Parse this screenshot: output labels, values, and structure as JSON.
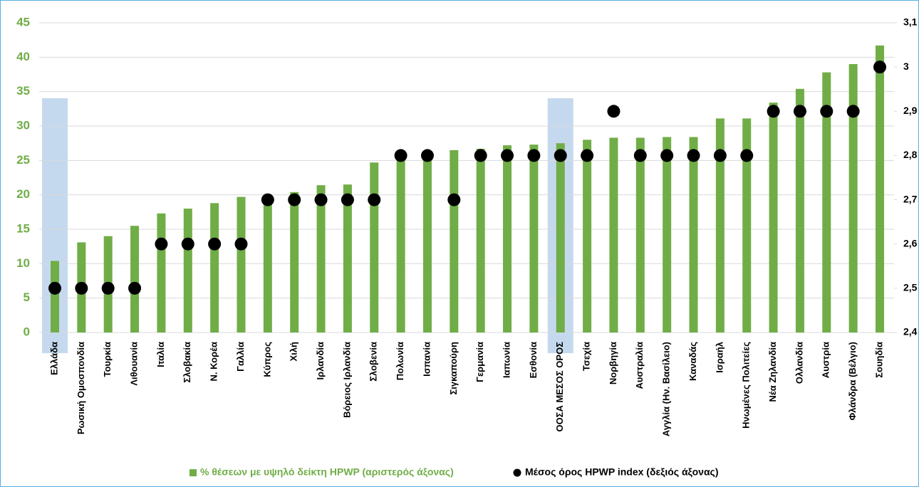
{
  "chart_data": {
    "type": "bar",
    "categories": [
      "Ελλάδα",
      "Ρωσική Ομοσπονδία",
      "Τουρκία",
      "Λιθουανία",
      "Ιταλία",
      "Σλοβακία",
      "Ν. Κορέα",
      "Γαλλία",
      "Κύπρος",
      "Χιλή",
      "Ιρλανδία",
      "Βόρειος Ιρλανδία",
      "Σλοβενία",
      "Πολωνία",
      "Ισπανία",
      "Σιγκαπούρη",
      "Γερμανία",
      "Ιαπωνία",
      "Εσθονία",
      "ΟΟΣΑ ΜΕΣΟΣ ΟΡΟΣ",
      "Τσεχία",
      "Νορβηγία",
      "Αυστραλία",
      "Αγγλία (Ην. Βασίλειο)",
      "Καναδάς",
      "Ισραήλ",
      "Ηνωμένες Πολιτείες",
      "Νέα Ζηλανδία",
      "Ολλανδία",
      "Αυστρία",
      "Φλάνδρα (Βέλγιο)",
      "Σουηδία"
    ],
    "series": [
      {
        "name": "% θέσεων με υψηλό δείκτη HPWP (αριστερός άξονας)",
        "type": "bar",
        "color": "#70ad47",
        "values": [
          10.4,
          13.1,
          14.0,
          15.5,
          17.3,
          18.0,
          18.8,
          19.7,
          19.6,
          20.4,
          21.4,
          21.5,
          24.7,
          25.9,
          26.0,
          26.5,
          26.7,
          27.2,
          27.3,
          27.5,
          28.0,
          28.3,
          28.3,
          28.4,
          28.4,
          31.1,
          31.1,
          33.4,
          35.4,
          37.8,
          39.0,
          41.7
        ]
      },
      {
        "name": "Μέσος όρος HPWP index (δεξιός άξονας)",
        "type": "scatter",
        "axis": "y2",
        "color": "#000000",
        "values": [
          2.5,
          2.5,
          2.5,
          2.5,
          2.6,
          2.6,
          2.6,
          2.6,
          2.7,
          2.7,
          2.7,
          2.7,
          2.7,
          2.8,
          2.8,
          2.7,
          2.8,
          2.8,
          2.8,
          2.8,
          2.8,
          2.9,
          2.8,
          2.8,
          2.8,
          2.8,
          2.8,
          2.9,
          2.9,
          2.9,
          2.9,
          3.0
        ]
      }
    ],
    "highlight": [
      0,
      19
    ],
    "highlight_color": "#c5d9ee",
    "ylim": [
      0,
      45
    ],
    "yticks": [
      0,
      5,
      10,
      15,
      20,
      25,
      30,
      35,
      40,
      45
    ],
    "y2lim": [
      2.4,
      3.1
    ],
    "y2ticks": [
      {
        "value": 2.4,
        "label": "2,4"
      },
      {
        "value": 2.5,
        "label": "2,5"
      },
      {
        "value": 2.6,
        "label": "2,6"
      },
      {
        "value": 2.7,
        "label": "2,7"
      },
      {
        "value": 2.8,
        "label": "2,8"
      },
      {
        "value": 2.9,
        "label": "2,9"
      },
      3,
      {
        "value": 3.1,
        "label": "3,1"
      }
    ],
    "grid": true,
    "legend": "bottom"
  }
}
